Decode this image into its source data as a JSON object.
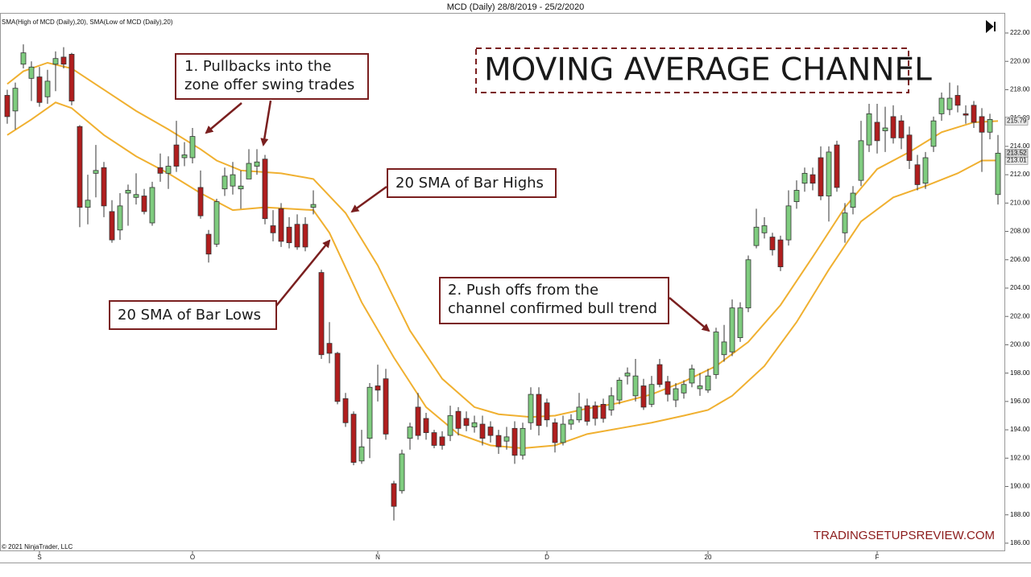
{
  "chart_data": {
    "type": "candlestick",
    "title": "MCD (Daily)  28/8/2019 - 25/2/2020",
    "indicator_label": "SMA(High of MCD (Daily),20), SMA(Low of MCD (Daily),20)",
    "headline": "MOVING AVERAGE CHANNEL",
    "watermark": "TRADINGSETUPSREVIEW.COM",
    "copyright": "© 2021 NinjaTrader, LLC",
    "annotations": {
      "pullbacks": [
        "1. Pullbacks into the",
        "zone offer swing trades"
      ],
      "sma_highs": "20 SMA of Bar Highs",
      "sma_lows": "20 SMA of Bar Lows",
      "push_offs": [
        "2. Push offs from the",
        "channel confirmed bull trend"
      ]
    },
    "categories": [
      null,
      null,
      null,
      null,
      "S",
      null,
      null,
      null,
      null,
      null,
      null,
      null,
      null,
      null,
      null,
      null,
      null,
      null,
      null,
      null,
      null,
      null,
      null,
      "O",
      null,
      null,
      null,
      null,
      null,
      null,
      null,
      null,
      null,
      null,
      null,
      null,
      null,
      null,
      null,
      null,
      null,
      null,
      null,
      null,
      null,
      null,
      "N",
      null,
      null,
      null,
      null,
      null,
      null,
      null,
      null,
      null,
      null,
      null,
      null,
      null,
      null,
      null,
      null,
      null,
      null,
      null,
      null,
      "D",
      null,
      null,
      null,
      null,
      null,
      null,
      null,
      null,
      null,
      null,
      null,
      null,
      null,
      null,
      null,
      null,
      null,
      null,
      null,
      "20",
      null,
      null,
      null,
      null,
      null,
      null,
      null,
      null,
      null,
      null,
      null,
      null,
      null,
      null,
      null,
      null,
      null,
      null,
      null,
      null,
      "F",
      null,
      null,
      null,
      null,
      null,
      null,
      null,
      null,
      null,
      null,
      null,
      null,
      null,
      null,
      null
    ],
    "open": [
      217.6,
      216.5,
      219.8,
      218.8,
      218.9,
      217.5,
      219.8,
      220.3,
      220.5,
      215.4,
      209.7,
      212.1,
      212.5,
      209.4,
      208.1,
      210.7,
      210.4,
      210.5,
      208.6,
      212.5,
      212.1,
      214.1,
      213.2,
      213.2,
      211.1,
      207.8,
      207.1,
      211,
      211.2,
      211,
      211.7,
      212.6,
      213.1,
      208.4,
      209.6,
      208.3,
      208.5,
      208.5,
      209.7,
      205.1,
      200.1,
      199.4,
      196.2,
      195.1,
      191.8,
      193.4,
      197.1,
      197.6,
      190.2,
      189.7,
      193.4,
      195.6,
      194.8,
      193.8,
      193.5,
      193.6,
      195.3,
      194.8,
      194.2,
      194.4,
      194.2,
      193.6,
      193.2,
      194.1,
      192.2,
      194.5,
      196.5,
      195.9,
      194.5,
      193.1,
      194.4,
      194.7,
      195.7,
      195.7,
      195.8,
      195.4,
      196.1,
      197.8,
      196.4,
      197.1,
      195.8,
      198.6,
      197.4,
      196.1,
      196.6,
      197.3,
      196.9,
      196.8,
      197.9,
      199.3,
      199.5,
      200.5,
      202.6,
      207,
      207.9,
      207.6,
      207.4,
      207.4,
      210.1,
      211.4,
      212,
      213.2,
      210.5,
      214.1,
      207.9,
      209.7,
      211.6,
      214.1,
      215.7,
      215.1,
      216.1,
      215.8,
      214.8,
      212.7,
      211.4,
      214,
      216.3,
      216.6,
      217.6,
      216.3,
      216.9,
      216.1,
      215,
      210.6
    ],
    "high": [
      218,
      218.5,
      221.2,
      220,
      219.6,
      219.4,
      220.7,
      221,
      220.6,
      215.5,
      212,
      214.1,
      212.9,
      210.2,
      210.7,
      211.3,
      212.1,
      211,
      211.5,
      213.5,
      213.3,
      215.8,
      214.3,
      215.3,
      212.3,
      208.1,
      210.3,
      212.5,
      212.9,
      212.3,
      213.8,
      213.8,
      213.4,
      209.5,
      210,
      209,
      209.2,
      209,
      210.9,
      205.3,
      201.6,
      199.5,
      196.6,
      195.3,
      194,
      197.3,
      198.6,
      198.3,
      190.4,
      192.6,
      194.5,
      196.6,
      195.2,
      194,
      193.9,
      195.7,
      195.6,
      195.3,
      195,
      195,
      194.6,
      194,
      194.2,
      194.6,
      194.5,
      197,
      197,
      196.2,
      194.8,
      195,
      195.1,
      196.6,
      196.2,
      196,
      196.2,
      197,
      197.7,
      198.4,
      199,
      197.6,
      197.8,
      199,
      197.8,
      197.3,
      197.5,
      198.6,
      198,
      198.3,
      201.2,
      201.4,
      203.2,
      203,
      206.3,
      209.6,
      209,
      207.9,
      207.7,
      210.9,
      211.6,
      212.5,
      212.5,
      214,
      214,
      214.4,
      210,
      211.2,
      215.8,
      217,
      217,
      216.8,
      216.9,
      216.2,
      215.4,
      213.4,
      213.6,
      216.1,
      217.8,
      218.5,
      218.3,
      216.9,
      217.2,
      216.7,
      216.3,
      214.8
    ],
    "low": [
      215.6,
      215.2,
      219.5,
      217.2,
      216.8,
      217,
      217.9,
      219.5,
      216.9,
      208.3,
      208.5,
      210.4,
      209,
      207.2,
      207.4,
      208.4,
      209.9,
      209.2,
      208.4,
      211.5,
      211,
      212.2,
      212.6,
      212.8,
      208.9,
      205.8,
      206.9,
      210.5,
      210.6,
      209.6,
      211.7,
      212,
      208.5,
      207.3,
      206.9,
      206.8,
      206.7,
      206.6,
      209.2,
      199,
      198.7,
      195.8,
      194.2,
      191.5,
      191.6,
      192,
      196,
      193.3,
      187.6,
      189.5,
      192.6,
      193.3,
      193.3,
      192.7,
      192.6,
      193.2,
      193.6,
      193.9,
      193.8,
      192.9,
      193.1,
      192.3,
      192.6,
      191.6,
      191.9,
      194,
      193.6,
      194.2,
      192.4,
      192.9,
      194,
      194.5,
      194.3,
      194.3,
      194.5,
      195,
      195.8,
      197.2,
      196,
      195.4,
      195.6,
      197,
      196,
      195.6,
      196.2,
      197,
      196.4,
      196.6,
      197.6,
      198.8,
      199.2,
      200.2,
      202.3,
      206.8,
      207.5,
      206.3,
      205.2,
      207,
      209.6,
      210.8,
      210.9,
      210.2,
      208.7,
      210.8,
      207.2,
      209.2,
      211.2,
      213.6,
      213.5,
      213.6,
      214.2,
      213.8,
      212.4,
      210.9,
      211,
      213.6,
      215.8,
      216.2,
      216.4,
      215.6,
      215.3,
      212.2,
      214.5,
      209.9
    ],
    "close": [
      216.1,
      218.1,
      220.6,
      219.6,
      217.1,
      218.6,
      220.2,
      219.8,
      217.2,
      209.7,
      210.2,
      212.3,
      209.8,
      207.4,
      209.8,
      210.9,
      210.6,
      209.4,
      211.1,
      212.1,
      212.6,
      212.6,
      213.4,
      214.7,
      209.1,
      206.4,
      210.1,
      211.9,
      212,
      211.2,
      212.8,
      212.9,
      208.9,
      207.9,
      207.3,
      207.2,
      206.9,
      206.9,
      209.9,
      199.3,
      199.4,
      196,
      194.5,
      191.7,
      192.8,
      197,
      196.8,
      193.7,
      188.6,
      192.3,
      194.2,
      193.6,
      193.8,
      192.9,
      192.9,
      195,
      194.1,
      194.3,
      194.5,
      193.4,
      193.6,
      192.8,
      193.5,
      192.2,
      194.1,
      196.5,
      194.3,
      194.7,
      193.1,
      194.4,
      194.7,
      195.6,
      194.6,
      194.8,
      194.8,
      196.4,
      197.5,
      198,
      197.8,
      195.6,
      197.2,
      197.2,
      196.5,
      196.9,
      197.2,
      198.3,
      197.1,
      197.8,
      200.9,
      200.2,
      202.6,
      202.6,
      206,
      208.3,
      208.4,
      206.7,
      205.5,
      209.8,
      210.9,
      212.1,
      211.4,
      210.5,
      213.6,
      211.1,
      209.3,
      210.7,
      214.4,
      216.3,
      214.4,
      215.3,
      214.6,
      214.6,
      213,
      211.3,
      213.2,
      215.8,
      217.4,
      217.4,
      216.9,
      216.2,
      215.7,
      215,
      215.9,
      213.52
    ],
    "up_color": "#7fcc7f",
    "down_color": "#b01e1e",
    "series": [
      {
        "color": "#f0b030",
        "x": [
          0,
          2,
          5,
          8,
          12,
          16,
          20,
          24,
          26,
          29,
          34,
          38,
          42,
          46,
          50,
          54,
          58,
          61,
          65,
          68,
          72,
          76,
          80,
          84,
          88,
          92,
          96,
          100,
          104,
          108,
          112,
          116,
          120,
          123
        ],
        "values": [
          218.4,
          219.3,
          219.9,
          219.5,
          218.0,
          216.5,
          215.2,
          213.8,
          213.0,
          212.3,
          212.1,
          211.7,
          209.3,
          205.6,
          201.0,
          197.6,
          195.6,
          195.1,
          194.9,
          195.0,
          195.5,
          195.9,
          196.5,
          197.4,
          198.5,
          200.2,
          202.8,
          206.2,
          209.7,
          212.4,
          213.6,
          215.0,
          215.7,
          215.79
        ]
      },
      {
        "color": "#f0b030",
        "x": [
          0,
          3,
          6,
          8,
          12,
          16,
          20,
          24,
          28,
          32,
          38,
          40,
          44,
          48,
          52,
          56,
          60,
          64,
          68,
          72,
          76,
          80,
          84,
          87,
          90,
          94,
          98,
          102,
          106,
          110,
          114,
          118,
          121,
          123
        ],
        "values": [
          214.8,
          215.9,
          217.1,
          216.7,
          214.8,
          213.3,
          212.1,
          210.7,
          209.5,
          209.7,
          209.5,
          207.9,
          203.0,
          199.1,
          195.6,
          193.7,
          192.9,
          192.7,
          192.9,
          193.7,
          194.1,
          194.5,
          195.0,
          195.4,
          196.4,
          198.5,
          201.6,
          205.3,
          208.7,
          210.4,
          211.2,
          212.1,
          213.0,
          213.01
        ]
      }
    ],
    "ylim": [
      185.43,
      223.42
    ],
    "yticks": [
      {
        "value": 186,
        "label": "186.00"
      },
      {
        "value": 188,
        "label": "188.00"
      },
      {
        "value": 190,
        "label": "190.00"
      },
      {
        "value": 192,
        "label": "192.00"
      },
      {
        "value": 194,
        "label": "194.00"
      },
      {
        "value": 196,
        "label": "196.00"
      },
      {
        "value": 198,
        "label": "198.00"
      },
      {
        "value": 200,
        "label": "200.00"
      },
      {
        "value": 202,
        "label": "202.00"
      },
      {
        "value": 204,
        "label": "204.00"
      },
      {
        "value": 206,
        "label": "206.00"
      },
      {
        "value": 208,
        "label": "208.00"
      },
      {
        "value": 210,
        "label": "210.00"
      },
      {
        "value": 212,
        "label": "212.00"
      },
      {
        "value": 214,
        "label": "214.00"
      },
      {
        "value": 216,
        "label": "216.00"
      },
      {
        "value": 218,
        "label": "218.00"
      },
      {
        "value": 220,
        "label": "220.00"
      },
      {
        "value": 222,
        "label": "222.00"
      }
    ]
  }
}
